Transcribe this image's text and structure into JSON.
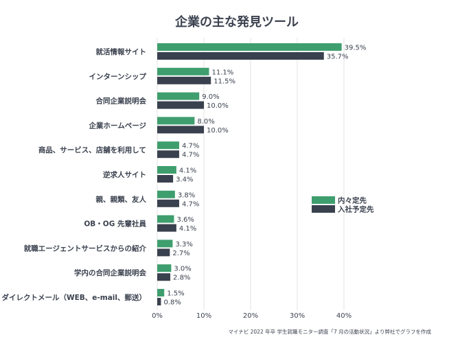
{
  "chart_data": {
    "type": "bar",
    "orientation": "horizontal",
    "title": "企業の主な発見ツール",
    "categories": [
      "就活情報サイト",
      "インターンシップ",
      "合同企業説明会",
      "企業ホームページ",
      "商品、サービス、店舗を利用して",
      "逆求人サイト",
      "親、親類、友人",
      "OB・OG 先輩社員",
      "就職エージェントサービスからの紹介",
      "学内の合同企業説明会",
      "ダイレクトメール（WEB、e-mail、郵送）"
    ],
    "series": [
      {
        "name": "内々定先",
        "values": [
          39.5,
          11.1,
          9.0,
          8.0,
          4.7,
          4.1,
          3.8,
          3.6,
          3.3,
          3.0,
          1.5
        ]
      },
      {
        "name": "入社予定先",
        "values": [
          35.7,
          11.5,
          10.0,
          10.0,
          4.7,
          3.4,
          4.7,
          4.1,
          2.7,
          2.8,
          0.8
        ]
      }
    ],
    "value_labels": [
      [
        "39.5%",
        "11.1%",
        "9.0%",
        "8.0%",
        "4.7%",
        "4.1%",
        "3.8%",
        "3.6%",
        "3.3%",
        "3.0%",
        "1.5%"
      ],
      [
        "35.7%",
        "11.5%",
        "10.0%",
        "10.0%",
        "4.7%",
        "3.4%",
        "4.7%",
        "4.1%",
        "2.7%",
        "2.8%",
        "0.8%"
      ]
    ],
    "xlim": [
      0,
      40
    ],
    "xticks": [
      0,
      10,
      20,
      30,
      40
    ],
    "xtick_labels": [
      "0%",
      "10%",
      "20%",
      "30%",
      "40%"
    ],
    "grid": true,
    "legend_position": "right-center",
    "source": "マイナビ 2022 年卒 学生就職モニター調査「7 月の活動状況」より弊社でグラフを作成",
    "colors": {
      "series1": "#3f9e6e",
      "series2": "#3a414e",
      "grid": "#e3e3e3",
      "text": "#3a414e"
    }
  }
}
